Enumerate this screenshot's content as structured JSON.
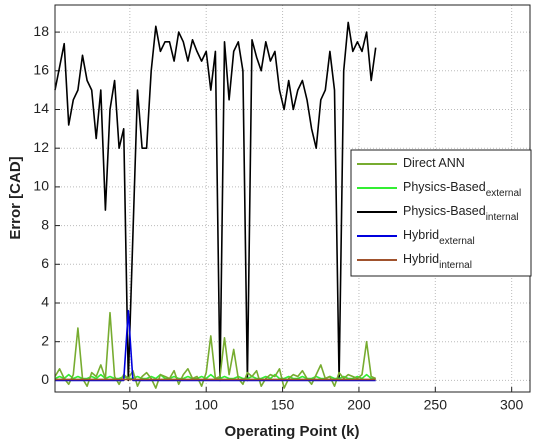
{
  "chart_data": {
    "type": "line",
    "xlabel": "Operating Point (k)",
    "ylabel": "Error [CAD]",
    "x": [
      1,
      4,
      7,
      10,
      13,
      16,
      19,
      22,
      25,
      28,
      31,
      34,
      37,
      40,
      43,
      46,
      49,
      52,
      55,
      58,
      61,
      64,
      67,
      70,
      73,
      76,
      79,
      82,
      85,
      88,
      91,
      94,
      97,
      100,
      103,
      106,
      109,
      112,
      115,
      118,
      121,
      124,
      127,
      130,
      133,
      136,
      139,
      142,
      145,
      148,
      151,
      154,
      157,
      160,
      163,
      166,
      169,
      172,
      175,
      178,
      181,
      184,
      187,
      190,
      193,
      196,
      199,
      202,
      205,
      208,
      211
    ],
    "xlim": [
      1,
      312
    ],
    "xticks": [
      50,
      100,
      150,
      200,
      250,
      300
    ],
    "ylim": [
      -0.6,
      19.4
    ],
    "yticks": [
      0,
      2,
      4,
      6,
      8,
      10,
      12,
      14,
      16,
      18
    ],
    "grid": true,
    "legend_position": "right",
    "series": [
      {
        "name": "Physics-Based",
        "name_sub": "internal",
        "color": "#000000",
        "values": [
          15,
          16.2,
          17.4,
          13.2,
          14.5,
          15,
          16.8,
          15.5,
          15,
          12.5,
          15,
          8.8,
          14,
          15.5,
          12,
          13,
          0,
          7.5,
          15,
          12,
          12,
          16,
          18.3,
          17,
          17.5,
          17.5,
          16.5,
          18,
          17.5,
          16.5,
          17.6,
          17,
          16.5,
          17,
          15,
          17,
          0,
          17.5,
          14.5,
          17,
          17.5,
          16,
          0,
          17.6,
          16.7,
          16,
          17.5,
          16.5,
          17,
          15,
          14,
          15.5,
          14,
          15,
          15.5,
          14.5,
          13,
          12,
          14.5,
          15,
          17,
          15,
          0,
          16,
          18.5,
          17,
          17.5,
          17,
          18,
          15.5,
          17.2
        ]
      },
      {
        "name": "Physics-Based",
        "name_sub": "external",
        "color": "#33ee33",
        "values": [
          0.1,
          0.2,
          0.1,
          0.3,
          0.1,
          0.2,
          0.1,
          0.1,
          0.2,
          0.1,
          0.3,
          0.1,
          0.2,
          0.1,
          0.1,
          0.2,
          0.1,
          0.1,
          0.2,
          0.1,
          0.1,
          0.2,
          0.1,
          0.3,
          0.1,
          0.1,
          0.2,
          0.1,
          0.1,
          0.2,
          0.1,
          0.1,
          0.2,
          0.1,
          0.3,
          0.1,
          0.1,
          0.2,
          0.1,
          0.1,
          0.2,
          0.1,
          0.1,
          0.2,
          0.1,
          0.1,
          0.2,
          0.1,
          0.3,
          0.1,
          0.1,
          0.2,
          0.1,
          0.1,
          0.2,
          0.1,
          0.1,
          0.2,
          0.1,
          0.1,
          0.2,
          0.1,
          0.1,
          0.2,
          0.1,
          0.1,
          0.2,
          0.1,
          0.3,
          0.1,
          0.1
        ]
      },
      {
        "name": "Direct ANN",
        "color": "#77ac30",
        "values": [
          0.2,
          0.6,
          0.1,
          -0.2,
          0.3,
          2.7,
          0.1,
          -0.3,
          0.4,
          0.2,
          0.8,
          0.1,
          3.5,
          0.2,
          -0.2,
          0.3,
          0.1,
          0.5,
          -0.3,
          0.2,
          0.4,
          0.1,
          -0.4,
          0.3,
          0.2,
          0.1,
          0.5,
          -0.2,
          0.3,
          0.6,
          0.1,
          0.2,
          -0.3,
          0.4,
          2.3,
          0.1,
          0.2,
          2.2,
          0.3,
          1.6,
          0.1,
          -0.2,
          0.4,
          0.2,
          0.5,
          -0.3,
          0.1,
          0.3,
          0.2,
          0.6,
          -0.4,
          0.1,
          0.3,
          0.2,
          0.5,
          0.1,
          -0.2,
          0.3,
          0.8,
          0.1,
          0.2,
          -0.3,
          0.4,
          0.1,
          0.3,
          0.2,
          0.1,
          0.3,
          2.0,
          0.2,
          0.1
        ]
      },
      {
        "name": "Hybrid",
        "name_sub": "external",
        "color": "#0000dd",
        "values": [
          0,
          0,
          0,
          0,
          0,
          0,
          0,
          0,
          0,
          0,
          0,
          0,
          0,
          0,
          0,
          0,
          3.6,
          0,
          0,
          0,
          0,
          0,
          0,
          0,
          0,
          0,
          0,
          0,
          0,
          0,
          0,
          0,
          0,
          0,
          0,
          0,
          0,
          0,
          0,
          0,
          0,
          0,
          0,
          0,
          0,
          0,
          0,
          0,
          0,
          0,
          0,
          0,
          0,
          0,
          0,
          0,
          0,
          0,
          0,
          0,
          0,
          0,
          0,
          0,
          0,
          0,
          0,
          0,
          0,
          0,
          0
        ]
      },
      {
        "name": "Hybrid",
        "name_sub": "internal",
        "color": "#a0522d",
        "values": [
          0.05,
          0.05,
          0.05,
          0.05,
          0.05,
          0.05,
          0.05,
          0.05,
          0.05,
          0.05,
          0.05,
          0.05,
          0.05,
          0.05,
          0.05,
          0.05,
          0.05,
          0.05,
          0.05,
          0.05,
          0.05,
          0.05,
          0.05,
          0.05,
          0.05,
          0.05,
          0.05,
          0.05,
          0.05,
          0.05,
          0.05,
          0.05,
          0.05,
          0.05,
          0.05,
          0.05,
          0.05,
          0.05,
          0.05,
          0.05,
          0.05,
          0.05,
          0.05,
          0.05,
          0.05,
          0.05,
          0.05,
          0.05,
          0.05,
          0.05,
          0.05,
          0.05,
          0.05,
          0.05,
          0.05,
          0.05,
          0.05,
          0.05,
          0.05,
          0.05,
          0.05,
          0.05,
          0.05,
          0.05,
          0.05,
          0.05,
          0.05,
          0.05,
          0.05,
          0.05,
          0.05
        ]
      }
    ]
  }
}
